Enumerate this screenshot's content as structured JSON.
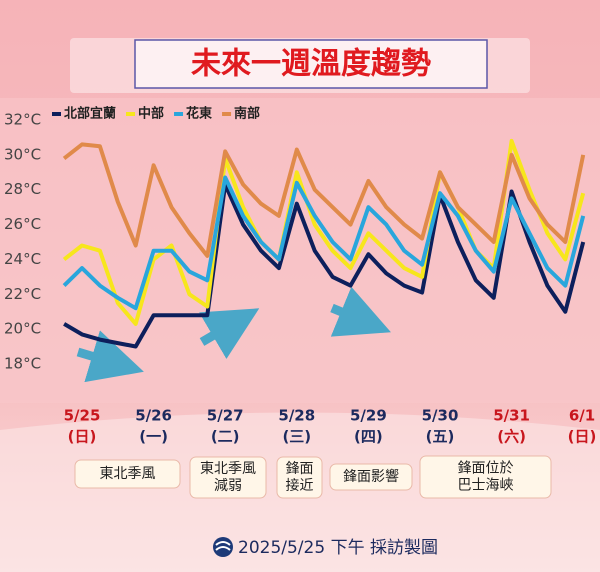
{
  "chart_data": {
    "type": "line",
    "title": "未來一週溫度趨勢",
    "x": [
      -0.25,
      0,
      0.25,
      0.5,
      0.75,
      1,
      1.25,
      1.5,
      1.75,
      2,
      2.25,
      2.5,
      2.75,
      3,
      3.25,
      3.5,
      3.75,
      4,
      4.25,
      4.5,
      4.75,
      5,
      5.25,
      5.5,
      5.75,
      6,
      6.25,
      6.5,
      6.75,
      7
    ],
    "series": [
      {
        "name": "北部宜蘭",
        "color": "#0d1f5c",
        "values": [
          20.3,
          19.7,
          19.4,
          19.2,
          19.0,
          20.8,
          20.8,
          20.8,
          20.8,
          28.3,
          26.0,
          24.5,
          23.5,
          27.2,
          24.5,
          23.0,
          22.5,
          24.3,
          23.2,
          22.5,
          22.1,
          27.7,
          25.0,
          22.8,
          21.8,
          27.9,
          25.0,
          22.5,
          21.0,
          25.0
        ]
      },
      {
        "name": "中部",
        "color": "#f7e61c",
        "values": [
          24.0,
          24.8,
          24.5,
          21.5,
          20.3,
          24.0,
          24.8,
          22.0,
          21.3,
          29.8,
          27.0,
          25.0,
          24.0,
          29.0,
          26.0,
          24.5,
          23.5,
          25.5,
          24.5,
          23.5,
          23.0,
          29.0,
          27.0,
          24.5,
          23.5,
          30.8,
          28.0,
          25.5,
          24.0,
          27.8
        ]
      },
      {
        "name": "花東",
        "color": "#29a6dc",
        "values": [
          22.5,
          23.5,
          22.5,
          21.8,
          21.2,
          24.5,
          24.5,
          23.3,
          22.8,
          28.7,
          26.5,
          25.0,
          24.0,
          28.4,
          26.5,
          25.0,
          24.0,
          27.0,
          26.0,
          24.5,
          23.7,
          27.8,
          26.5,
          24.5,
          23.3,
          27.5,
          25.5,
          23.5,
          22.5,
          26.5
        ]
      },
      {
        "name": "南部",
        "color": "#e08a4a",
        "values": [
          29.8,
          30.6,
          30.5,
          27.3,
          24.8,
          29.4,
          27.0,
          25.5,
          24.2,
          30.2,
          28.3,
          27.2,
          26.5,
          30.3,
          28.0,
          27.0,
          26.0,
          28.5,
          27.0,
          26.0,
          25.2,
          29.0,
          27.0,
          26.0,
          25.0,
          30.0,
          27.5,
          26.0,
          25.0,
          30.0
        ]
      }
    ],
    "xlim": [
      -0.25,
      7
    ],
    "xticks": [
      {
        "value": 0,
        "label": "5/25",
        "weekday": "(日)",
        "color": "#c8161d"
      },
      {
        "value": 1,
        "label": "5/26",
        "weekday": "(一)",
        "color": "#1c2a5e"
      },
      {
        "value": 2,
        "label": "5/27",
        "weekday": "(二)",
        "color": "#1c2a5e"
      },
      {
        "value": 3,
        "label": "5/28",
        "weekday": "(三)",
        "color": "#1c2a5e"
      },
      {
        "value": 4,
        "label": "5/29",
        "weekday": "(四)",
        "color": "#1c2a5e"
      },
      {
        "value": 5,
        "label": "5/30",
        "weekday": "(五)",
        "color": "#1c2a5e"
      },
      {
        "value": 6,
        "label": "5/31",
        "weekday": "(六)",
        "color": "#c8161d"
      },
      {
        "value": 7,
        "label": "6/1",
        "weekday": "(日)",
        "color": "#c8161d"
      }
    ],
    "ylim": [
      17,
      33
    ],
    "yticks": [
      {
        "value": 18,
        "label": "18°C"
      },
      {
        "value": 20,
        "label": "20°C"
      },
      {
        "value": 22,
        "label": "22°C"
      },
      {
        "value": 24,
        "label": "24°C"
      },
      {
        "value": 26,
        "label": "26°C"
      },
      {
        "value": 28,
        "label": "28°C"
      },
      {
        "value": 30,
        "label": "30°C"
      },
      {
        "value": 32,
        "label": "32°C"
      }
    ],
    "annotations": [
      {
        "lines": [
          "東北季風"
        ]
      },
      {
        "lines": [
          "東北季風",
          "減弱"
        ]
      },
      {
        "lines": [
          "鋒面",
          "接近"
        ]
      },
      {
        "lines": [
          "鋒面影響"
        ]
      },
      {
        "lines": [
          "鋒面位於",
          "巴士海峽"
        ]
      }
    ],
    "footer": "2025/5/25 下午 採訪製圖"
  }
}
